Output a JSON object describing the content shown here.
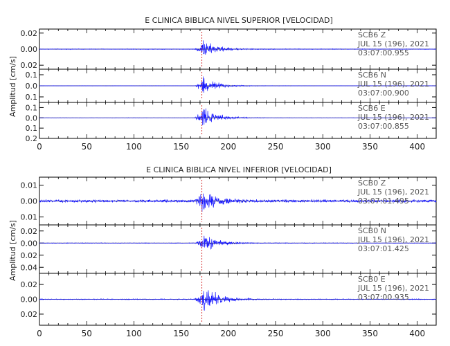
{
  "colors": {
    "trace": "#1a1aff",
    "axis": "#000000",
    "annotation": "#555555",
    "pick_marker": "#cc0000"
  },
  "chart_data": [
    {
      "type": "line",
      "title": "E CLINICA BIBLICA NIVEL SUPERIOR [VELOCIDAD]",
      "ylabel": "Amplitud [cm/s]",
      "xlabel": "",
      "xlim": [
        0,
        420
      ],
      "x_ticks": [
        0,
        50,
        100,
        150,
        200,
        250,
        300,
        350,
        400
      ],
      "event_time_s": 172,
      "panels": [
        {
          "channel": "SCB6 Z",
          "date": "JUL 15 (196), 2021",
          "time": "03:07:00.955",
          "ylim": [
            -0.025,
            0.025
          ],
          "y_ticks": [
            0.02,
            0.0,
            -0.02
          ],
          "y_tick_labels": [
            "0.02",
            "0.00",
            "0.02"
          ],
          "peak_amplitude": 0.019,
          "noise_amplitude": 0.0006
        },
        {
          "channel": "SCB6 N",
          "date": "JUL 15 (196), 2021",
          "time": "03:07:00.900",
          "ylim": [
            -0.15,
            0.15
          ],
          "y_ticks": [
            0.1,
            0.0,
            -0.1
          ],
          "y_tick_labels": [
            "0.1",
            "0.0",
            "0.1"
          ],
          "peak_amplitude": 0.14,
          "noise_amplitude": 0.002
        },
        {
          "channel": "SCB6 E",
          "date": "JUL 15 (196), 2021",
          "time": "03:07:00.855",
          "ylim": [
            -0.2,
            0.15
          ],
          "y_ticks": [
            0.1,
            0.0,
            -0.1,
            -0.2
          ],
          "y_tick_labels": [
            "0.1",
            "0.0",
            "0.1",
            "0.2"
          ],
          "peak_amplitude": 0.18,
          "noise_amplitude": 0.002
        }
      ]
    },
    {
      "type": "line",
      "title": "E CLINICA BIBLICA NIVEL INFERIOR [VELOCIDAD]",
      "ylabel": "Amplitud [cm/s]",
      "xlabel": "",
      "xlim": [
        0,
        420
      ],
      "x_ticks": [
        0,
        50,
        100,
        150,
        200,
        250,
        300,
        350,
        400
      ],
      "event_time_s": 172,
      "panels": [
        {
          "channel": "SCB0 Z",
          "date": "JUL 15 (196), 2021",
          "time": "03:07:01.495",
          "ylim": [
            -0.015,
            0.015
          ],
          "y_ticks": [
            0.01,
            0.0,
            -0.01
          ],
          "y_tick_labels": [
            "0.01",
            "0.00",
            "0.01"
          ],
          "peak_amplitude": 0.013,
          "noise_amplitude": 0.0012
        },
        {
          "channel": "SCB0 N",
          "date": "JUL 15 (196), 2021",
          "time": "03:07:01.425",
          "ylim": [
            -0.05,
            0.03
          ],
          "y_ticks": [
            0.02,
            0.0,
            -0.02,
            -0.04
          ],
          "y_tick_labels": [
            "0.02",
            "0.00",
            "0.02",
            "0.04"
          ],
          "peak_amplitude": 0.028,
          "noise_amplitude": 0.0006
        },
        {
          "channel": "SCB0 E",
          "date": "JUL 15 (196), 2021",
          "time": "03:07:00.935",
          "ylim": [
            -0.035,
            0.035
          ],
          "y_ticks": [
            0.02,
            0.0,
            -0.02
          ],
          "y_tick_labels": [
            "0.02",
            "0.00",
            "0.02"
          ],
          "peak_amplitude": 0.033,
          "noise_amplitude": 0.0008
        }
      ]
    }
  ]
}
